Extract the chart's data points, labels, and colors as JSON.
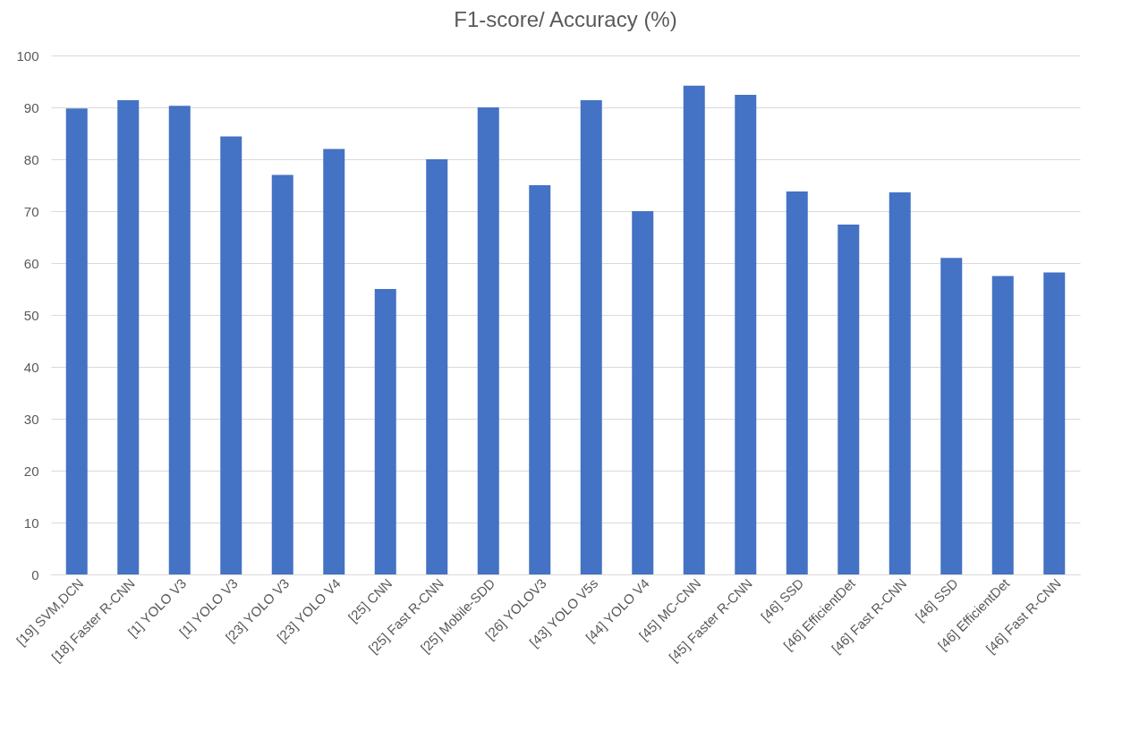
{
  "chart_data": {
    "type": "bar",
    "title": "F1-score/ Accuracy (%)",
    "categories": [
      "[19] SVM,DCN",
      "[18] Faster R-CNN",
      "[1] YOLO V3",
      "[1] YOLO V3",
      "[23] YOLO V3",
      "[23] YOLO V4",
      "[25] CNN",
      "[25] Fast R-CNN",
      "[25] Mobile-SDD",
      "[26] YOLOV3",
      "[43] YOLO V5s",
      "[44] YOLO V4",
      "[45] MC-CNN",
      "[45] Faster R-CNN",
      "[46] SSD",
      "[46] EfficientDet",
      "[46] Fast R-CNN",
      "[46] SSD",
      "[46] EfficientDet",
      "[46] Fast R-CNN"
    ],
    "values": [
      89.8,
      91.4,
      90.3,
      84.4,
      77,
      82,
      55,
      80,
      90,
      75,
      91.4,
      70,
      94.2,
      92.4,
      73.8,
      67.4,
      73.6,
      61,
      57.5,
      58.2
    ],
    "color": "#4472c4",
    "ylim": [
      0,
      100
    ],
    "yticks": [
      0,
      10,
      20,
      30,
      40,
      50,
      60,
      70,
      80,
      90,
      100
    ],
    "grid": "y"
  }
}
